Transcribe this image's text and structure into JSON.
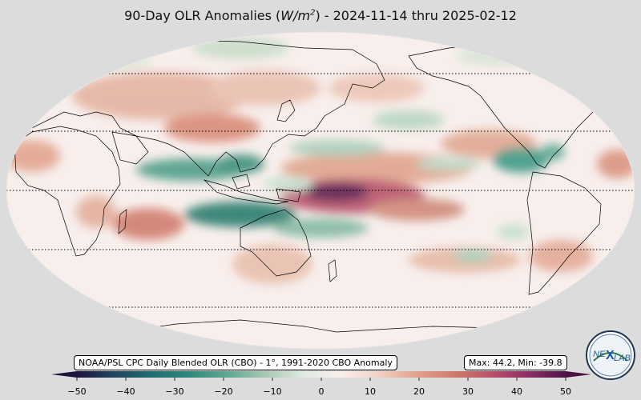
{
  "title": {
    "prefix": "90-Day OLR Anomalies (",
    "unit_base": "W/m",
    "unit_exp": "2",
    "suffix": ") - 2024-11-14 thru 2025-02-12"
  },
  "source_note": "NOAA/PSL CPC Daily Blended OLR (CBO) - 1°, 1991-2020 CBO Anomaly",
  "stats_note": "Max: 44.2,  Min: -39.8",
  "colorbar": {
    "ticks": [
      -50,
      -40,
      -30,
      -20,
      -10,
      0,
      10,
      20,
      30,
      40,
      50
    ],
    "tick_labels": [
      "−50",
      "−40",
      "−30",
      "−20",
      "−10",
      "0",
      "10",
      "20",
      "30",
      "40",
      "50"
    ],
    "range": [
      -50,
      50
    ],
    "extend": "both",
    "colors": [
      "#1c1640",
      "#23455e",
      "#1f6e6e",
      "#2d8a7a",
      "#5ea792",
      "#a5c9b2",
      "#dde9df",
      "#f9efec",
      "#f1d2c6",
      "#e0a58f",
      "#cf7c6b",
      "#b8536a",
      "#8d2f66",
      "#4a1545"
    ]
  },
  "map": {
    "projection": "Robinson",
    "center_longitude": 180,
    "ocean_color": "#f8efec",
    "parallels_dotted": [
      "60N",
      "30N",
      "0",
      "30S",
      "60S"
    ]
  },
  "logo": {
    "text": "NEXLAB",
    "left_text": "NE",
    "x_text": "X",
    "right_text": "LAB"
  }
}
